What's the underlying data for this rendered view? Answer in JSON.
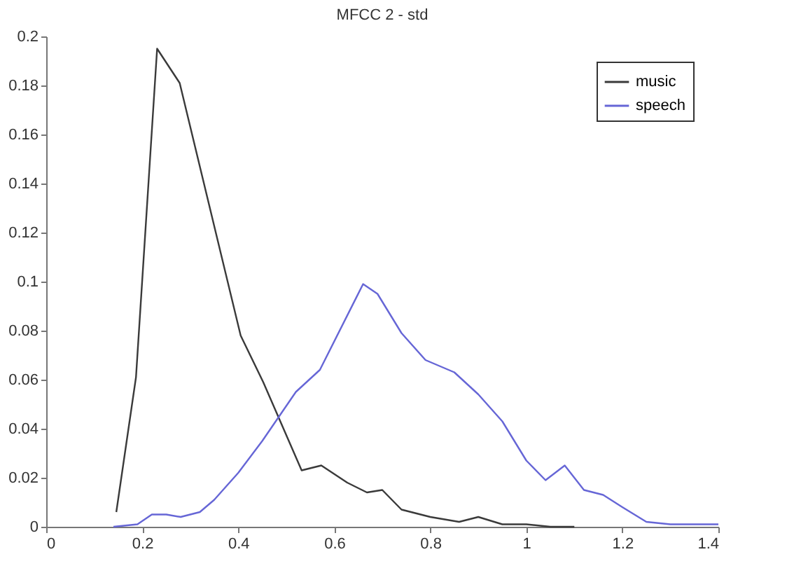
{
  "chart_data": {
    "type": "line",
    "title": "MFCC 2 - std",
    "xlim": [
      0,
      1.4
    ],
    "xticks": [
      0,
      0.2,
      0.4,
      0.6,
      0.8,
      1,
      1.2,
      1.4
    ],
    "ylim": [
      0,
      0.2
    ],
    "yticks": [
      0,
      0.02,
      0.04,
      0.06,
      0.08,
      0.1,
      0.12,
      0.14,
      0.16,
      0.18,
      0.2
    ],
    "grid": false,
    "legend": "top right",
    "marker": "none",
    "line_style": "solid",
    "series": [
      {
        "name": "music",
        "color": "#3a3a3a",
        "x": [
          0.146,
          0.187,
          0.231,
          0.278,
          0.405,
          0.452,
          0.532,
          0.573,
          0.627,
          0.668,
          0.7,
          0.74,
          0.8,
          0.86,
          0.9,
          0.95,
          1.0,
          1.05,
          1.1
        ],
        "values": [
          0.006,
          0.061,
          0.195,
          0.181,
          0.078,
          0.059,
          0.023,
          0.025,
          0.018,
          0.014,
          0.015,
          0.007,
          0.004,
          0.002,
          0.004,
          0.001,
          0.001,
          0,
          0
        ]
      },
      {
        "name": "speech",
        "color": "#6666d6",
        "x": [
          0.14,
          0.19,
          0.22,
          0.25,
          0.28,
          0.32,
          0.35,
          0.4,
          0.45,
          0.52,
          0.57,
          0.66,
          0.69,
          0.74,
          0.79,
          0.85,
          0.9,
          0.95,
          1.0,
          1.04,
          1.08,
          1.12,
          1.16,
          1.2,
          1.25,
          1.3,
          1.4
        ],
        "values": [
          0,
          0.001,
          0.005,
          0.005,
          0.004,
          0.006,
          0.011,
          0.022,
          0.035,
          0.055,
          0.064,
          0.099,
          0.095,
          0.079,
          0.068,
          0.063,
          0.054,
          0.043,
          0.027,
          0.019,
          0.025,
          0.015,
          0.013,
          0.008,
          0.002,
          0.001,
          0.001
        ]
      }
    ]
  }
}
